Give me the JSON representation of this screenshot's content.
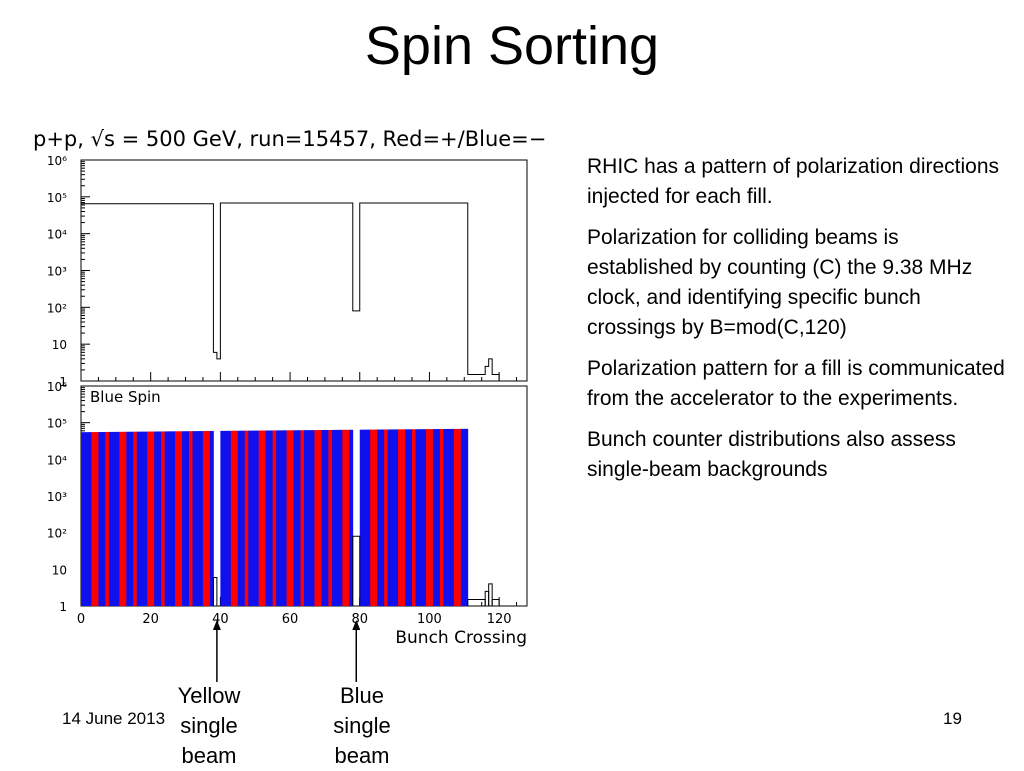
{
  "slide": {
    "title": "Spin Sorting",
    "plot_header": "p+p, √s = 500 GeV, run=15457, Red=+/Blue=−",
    "footer_date": "14 June 2013",
    "page_number": "19"
  },
  "bullets": [
    "RHIC has a pattern of polarization directions injected for each fill.",
    "Polarization for colliding beams is established by counting (C) the 9.38 MHz clock, and identifying specific bunch crossings by B=mod(C,120)",
    "Polarization pattern for a fill is communicated from the accelerator to the experiments.",
    "Bunch counter distributions also assess single-beam backgrounds"
  ],
  "annotations": {
    "yellow": "Yellow\nsingle\nbeam",
    "blue": "Blue\nsingle\nbeam",
    "yellow_x": 39,
    "blue_x": 79
  },
  "colors": {
    "red": "#ff0000",
    "blue": "#1010ee",
    "frame": "#000000"
  },
  "chart_data": [
    {
      "type": "histogram",
      "xlim": [
        0,
        128
      ],
      "ylim": [
        1,
        1000000
      ],
      "log_y": true,
      "y_tick_labels": [
        "1",
        "10",
        "10²",
        "10³",
        "10⁴",
        "10⁵",
        "10⁶"
      ],
      "y_tick_values": [
        1,
        10,
        100,
        1000,
        10000,
        100000,
        1000000
      ],
      "x_tick_labels": [
        "0",
        "20",
        "40",
        "60",
        "80",
        "100",
        "120"
      ],
      "x_tick_values": [
        0,
        20,
        40,
        60,
        80,
        100,
        120
      ],
      "y_lower_label": "1",
      "series": [
        {
          "segments": [
            {
              "x0": 0,
              "x1": 38,
              "y": 65000
            },
            {
              "x0": 38,
              "x1": 39,
              "y": 6
            },
            {
              "x0": 39,
              "x1": 40,
              "y": 4
            },
            {
              "x0": 40,
              "x1": 78,
              "y": 68000
            },
            {
              "x0": 78,
              "x1": 80,
              "y": 80
            },
            {
              "x0": 80,
              "x1": 111,
              "y": 68000
            },
            {
              "x0": 111,
              "x1": 116,
              "y": 1.5
            },
            {
              "x0": 116,
              "x1": 117,
              "y": 2.5
            },
            {
              "x0": 117,
              "x1": 118,
              "y": 4
            },
            {
              "x0": 118,
              "x1": 120,
              "y": 1.5
            }
          ]
        }
      ]
    },
    {
      "type": "bar",
      "title": "Blue Spin",
      "xlabel": "Bunch Crossing",
      "xlim": [
        0,
        128
      ],
      "ylim": [
        1,
        1000000
      ],
      "log_y": true,
      "y_tick_labels": [
        "1",
        "10",
        "10²",
        "10³",
        "10⁴",
        "10⁵",
        "10⁶"
      ],
      "y_tick_values": [
        1,
        10,
        100,
        1000,
        10000,
        100000,
        1000000
      ],
      "x_tick_labels": [
        "0",
        "20",
        "40",
        "60",
        "80",
        "100",
        "120"
      ],
      "x_tick_values": [
        0,
        20,
        40,
        60,
        80,
        100,
        120
      ],
      "filled_ranges": [
        [
          0,
          38
        ],
        [
          40,
          78
        ],
        [
          80,
          111
        ]
      ],
      "pattern": [
        "blue",
        "blue",
        "blue",
        "red",
        "red",
        "blue",
        "blue",
        "red"
      ],
      "values_start": 55000,
      "values_end": 68000,
      "gaps": [
        {
          "x0": 38,
          "x1": 39,
          "y": 6
        },
        {
          "x0": 78,
          "x1": 80,
          "y": 80
        },
        {
          "x0": 111,
          "x1": 116,
          "y": 1.5
        },
        {
          "x0": 116,
          "x1": 117,
          "y": 2.5
        },
        {
          "x0": 117,
          "x1": 118,
          "y": 4
        },
        {
          "x0": 118,
          "x1": 120,
          "y": 1.5
        }
      ]
    }
  ]
}
